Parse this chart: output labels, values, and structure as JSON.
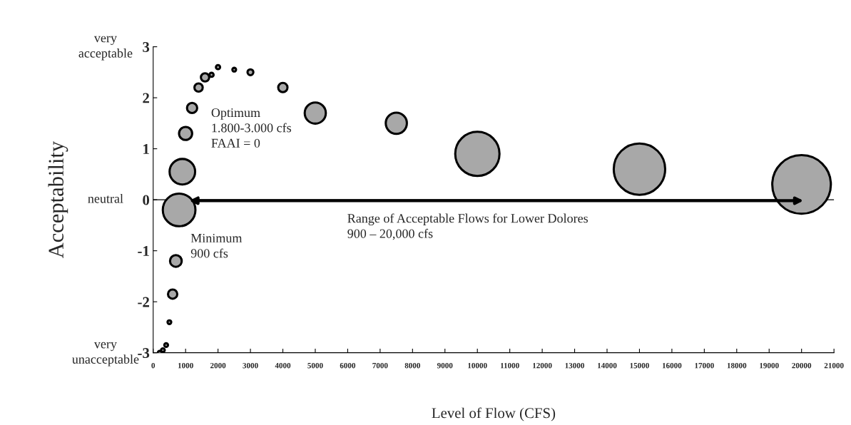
{
  "chart_data": {
    "type": "bubble",
    "xlabel": "Level of Flow (CFS)",
    "ylabel": "Acceptability",
    "x": [
      200,
      300,
      400,
      500,
      600,
      700,
      800,
      900,
      1000,
      1200,
      1400,
      1600,
      1800,
      2000,
      2500,
      3000,
      4000,
      5000,
      7500,
      10000,
      15000,
      20000
    ],
    "values": [
      -3.0,
      -2.95,
      -2.85,
      -2.4,
      -1.85,
      -1.2,
      -0.2,
      0.55,
      1.3,
      1.8,
      2.2,
      2.4,
      2.45,
      2.6,
      2.55,
      2.5,
      2.2,
      1.7,
      1.5,
      0.9,
      0.6,
      0.3
    ],
    "sizes": [
      0.004,
      0.004,
      0.004,
      0.004,
      0.025,
      0.04,
      0.31,
      0.19,
      0.05,
      0.03,
      0.02,
      0.02,
      0.005,
      0.005,
      0.004,
      0.01,
      0.025,
      0.13,
      0.13,
      0.57,
      0.77,
      1
    ],
    "color": "#a8a8a8",
    "xlim": [
      0,
      21000
    ],
    "xticks": [
      0,
      1000,
      2000,
      3000,
      4000,
      5000,
      6000,
      7000,
      8000,
      9000,
      10000,
      11000,
      12000,
      13000,
      14000,
      15000,
      16000,
      17000,
      18000,
      19000,
      20000,
      21000
    ],
    "ylim": [
      -3,
      3
    ],
    "yticks": [
      -3,
      -2,
      -1,
      0,
      1,
      2,
      3
    ],
    "grid": false,
    "legend": false,
    "ref_lines": [
      {
        "axis": "y",
        "value": 0,
        "color": "#000000",
        "line_style": "solid"
      }
    ],
    "annotations": [
      "very\nacceptable",
      "neutral",
      "very\nunacceptable",
      "Optimum\n1.800-3.000 cfs\nFAAI = 0",
      "Minimum\n900 cfs",
      "Range of Acceptable Flows for Lower Dolores\n900 – 20,000 cfs"
    ]
  }
}
